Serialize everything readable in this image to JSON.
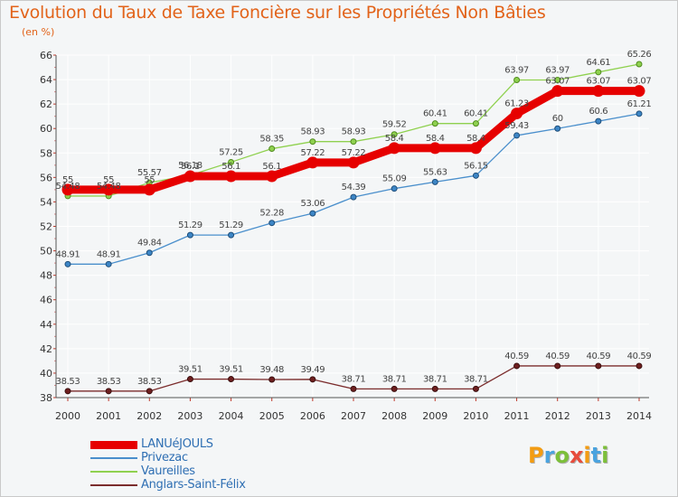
{
  "title": "Evolution du Taux de Taxe Foncière sur les Propriétés Non Bâties",
  "unit": "(en %)",
  "brand": {
    "text": "Proxiti",
    "letters": [
      "P",
      "r",
      "o",
      "x",
      "i",
      "t",
      "i"
    ],
    "colors": [
      "#f39c12",
      "#4aa3df",
      "#7cbf3a",
      "#e74c3c",
      "#f39c12",
      "#4aa3df",
      "#7cbf3a"
    ]
  },
  "chart_data": {
    "type": "line",
    "title": "Evolution du Taux de Taxe Foncière sur les Propriétés Non Bâties",
    "ylabel": "(en %)",
    "xlabel": "",
    "x": [
      2000,
      2001,
      2002,
      2003,
      2004,
      2005,
      2006,
      2007,
      2008,
      2009,
      2010,
      2011,
      2012,
      2013,
      2014
    ],
    "ylim": [
      38,
      66
    ],
    "yticks": [
      38,
      40,
      42,
      44,
      46,
      48,
      50,
      52,
      54,
      56,
      58,
      60,
      62,
      64,
      66
    ],
    "grid": true,
    "legend_position": "bottom-left",
    "series": [
      {
        "name": "LANUéJOULS",
        "color": "#e60000",
        "values": [
          55,
          55,
          55,
          56.1,
          56.1,
          56.1,
          57.22,
          57.22,
          58.4,
          58.4,
          58.4,
          61.23,
          63.07,
          63.07,
          63.07
        ],
        "labels": [
          "55",
          "55",
          "55",
          "56.1",
          "56.1",
          "56.1",
          "57.22",
          "57.22",
          "58.4",
          "58.4",
          "58.4",
          "61.23",
          "63.07",
          "63.07",
          "63.07"
        ]
      },
      {
        "name": "Privezac",
        "color": "#4a8fcc",
        "values": [
          48.91,
          48.91,
          49.84,
          51.29,
          51.29,
          52.28,
          53.06,
          54.39,
          55.09,
          55.63,
          56.15,
          59.43,
          60,
          60.6,
          61.21
        ],
        "labels": [
          "48.91",
          "48.91",
          "49.84",
          "51.29",
          "51.29",
          "52.28",
          "53.06",
          "54.39",
          "55.09",
          "55.63",
          "56.15",
          "59.43",
          "60",
          "60.6",
          "61.21"
        ]
      },
      {
        "name": "Vaureilles",
        "color": "#8fd14f",
        "values": [
          54.48,
          54.48,
          55.57,
          56.18,
          57.25,
          58.35,
          58.93,
          58.93,
          59.52,
          60.41,
          60.41,
          63.97,
          63.97,
          64.61,
          65.26
        ],
        "labels": [
          "54.48",
          "54.48",
          "55.57",
          "56.18",
          "57.25",
          "58.35",
          "58.93",
          "58.93",
          "59.52",
          "60.41",
          "60.41",
          "63.97",
          "63.97",
          "64.61",
          "65.26"
        ]
      },
      {
        "name": "Anglars-Saint-Félix",
        "color": "#7b2c2c",
        "values": [
          38.53,
          38.53,
          38.53,
          39.51,
          39.51,
          39.48,
          39.49,
          38.71,
          38.71,
          38.71,
          38.71,
          40.59,
          40.59,
          40.59,
          40.59
        ],
        "labels": [
          "38.53",
          "38.53",
          "38.53",
          "39.51",
          "39.51",
          "39.48",
          "39.49",
          "38.71",
          "38.71",
          "38.71",
          "38.71",
          "40.59",
          "40.59",
          "40.59",
          "40.59"
        ]
      }
    ]
  }
}
